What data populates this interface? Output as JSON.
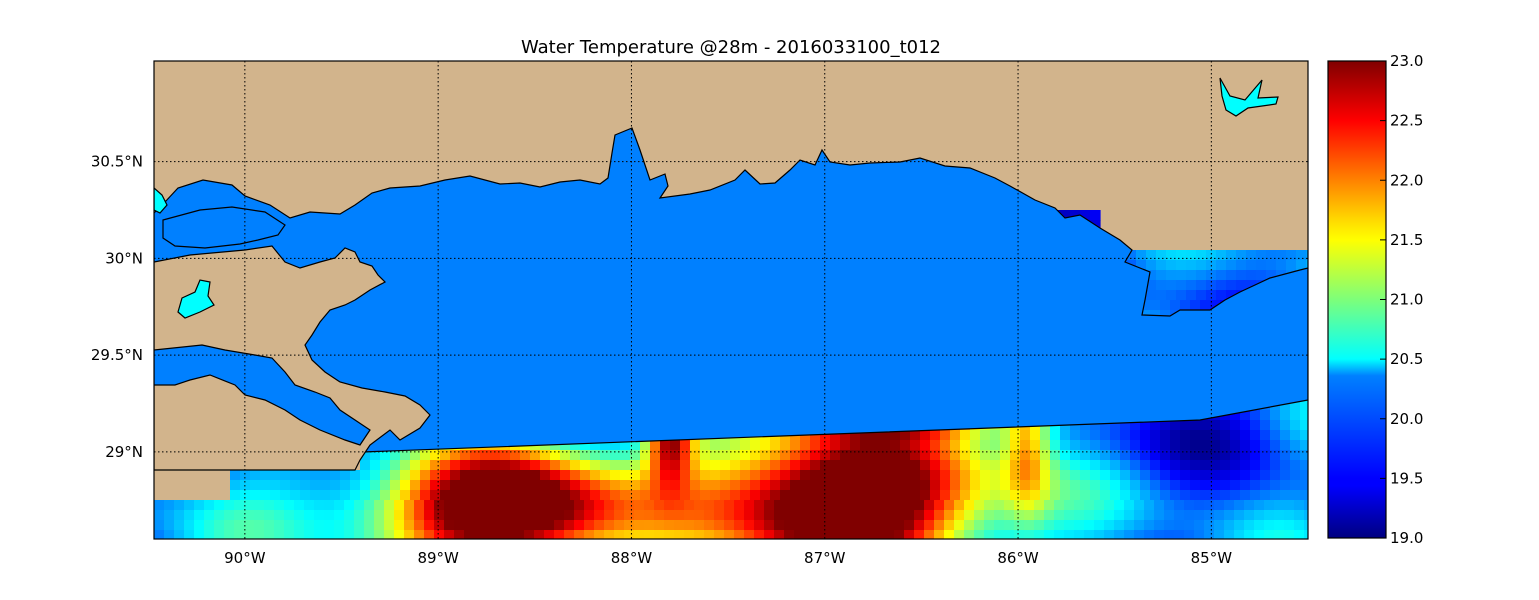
{
  "figure": {
    "title": "Water Temperature @28m - 2016033100_t012"
  },
  "map": {
    "lon_range": [
      -90.47,
      -84.5
    ],
    "lat_range": [
      28.55,
      31.02
    ],
    "lon_ticks": [
      {
        "value": -90,
        "label": "90°W"
      },
      {
        "value": -89,
        "label": "89°W"
      },
      {
        "value": -88,
        "label": "88°W"
      },
      {
        "value": -87,
        "label": "87°W"
      },
      {
        "value": -86,
        "label": "86°W"
      },
      {
        "value": -85,
        "label": "85°W"
      }
    ],
    "lat_ticks": [
      {
        "value": 30.5,
        "label": "30.5°N"
      },
      {
        "value": 30.0,
        "label": "30°N"
      },
      {
        "value": 29.5,
        "label": "29.5°N"
      },
      {
        "value": 29.0,
        "label": "29°N"
      }
    ],
    "gridlines": true,
    "colors": {
      "land": "#d2b48c",
      "coastal_water": "#0080ff",
      "inland_lake": "#00ffff",
      "outline": "#000000"
    }
  },
  "colorbar": {
    "colormap": "jet",
    "min": 19.0,
    "max": 23.0,
    "ticks": [
      {
        "value": 23.0,
        "label": "23.0"
      },
      {
        "value": 22.5,
        "label": "22.5"
      },
      {
        "value": 22.0,
        "label": "22.0"
      },
      {
        "value": 21.5,
        "label": "21.5"
      },
      {
        "value": 21.0,
        "label": "21.0"
      },
      {
        "value": 20.5,
        "label": "20.5"
      },
      {
        "value": 20.0,
        "label": "20.0"
      },
      {
        "value": 19.5,
        "label": "19.5"
      },
      {
        "value": 19.0,
        "label": "19.0"
      }
    ]
  }
}
